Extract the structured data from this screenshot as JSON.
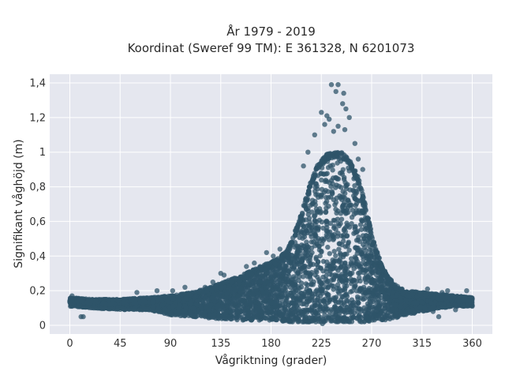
{
  "chart_data": {
    "type": "scatter",
    "title_line1": "År 1979 - 2019",
    "title_line2": "Koordinat (Sweref 99 TM): E 361328, N 6201073",
    "xlabel": "Vågriktning (grader)",
    "ylabel": "Signifikant våghöjd (m)",
    "xlim": [
      -18,
      378
    ],
    "ylim": [
      -0.05,
      1.45
    ],
    "xticks": [
      0,
      45,
      90,
      135,
      180,
      225,
      270,
      315,
      360
    ],
    "xtick_labels": [
      "0",
      "45",
      "90",
      "135",
      "180",
      "225",
      "270",
      "315",
      "360"
    ],
    "yticks": [
      0,
      0.2,
      0.4,
      0.6,
      0.8,
      1,
      1.2,
      1.4
    ],
    "ytick_labels": [
      "0",
      "0,2",
      "0,4",
      "0,6",
      "0,8",
      "1",
      "1,2",
      "1,4"
    ],
    "grid": true,
    "colors": {
      "marker": "#2f5469",
      "plot_bg": "#e5e7ef",
      "grid": "#ffffff",
      "page_bg": "#ffffff"
    },
    "envelope": {
      "x": [
        0,
        20,
        45,
        70,
        90,
        110,
        130,
        150,
        170,
        185,
        195,
        205,
        215,
        222,
        230,
        237,
        243,
        250,
        258,
        265,
        272,
        280,
        290,
        300,
        315,
        330,
        345,
        360
      ],
      "upper": [
        0.16,
        0.15,
        0.15,
        0.16,
        0.17,
        0.19,
        0.23,
        0.28,
        0.34,
        0.38,
        0.44,
        0.6,
        0.82,
        0.93,
        0.99,
        1.0,
        1.0,
        0.96,
        0.86,
        0.68,
        0.48,
        0.33,
        0.24,
        0.2,
        0.19,
        0.18,
        0.17,
        0.16
      ],
      "lower": [
        0.11,
        0.1,
        0.09,
        0.09,
        0.06,
        0.05,
        0.04,
        0.03,
        0.03,
        0.03,
        0.02,
        0.02,
        0.02,
        0.02,
        0.02,
        0.02,
        0.02,
        0.02,
        0.02,
        0.02,
        0.03,
        0.03,
        0.04,
        0.06,
        0.08,
        0.1,
        0.11,
        0.11
      ]
    },
    "outlier_points": [
      [
        225,
        1.23
      ],
      [
        234,
        1.39
      ],
      [
        240,
        1.39
      ],
      [
        238,
        1.35
      ],
      [
        245,
        1.34
      ],
      [
        244,
        1.28
      ],
      [
        247,
        1.25
      ],
      [
        250,
        1.2
      ],
      [
        232,
        1.19
      ],
      [
        228,
        1.16
      ],
      [
        219,
        1.1
      ],
      [
        255,
        1.05
      ],
      [
        213,
        1.0
      ],
      [
        258,
        0.96
      ],
      [
        209,
        0.92
      ],
      [
        262,
        0.9
      ],
      [
        240,
        1.15
      ],
      [
        236,
        1.12
      ],
      [
        246,
        1.13
      ],
      [
        230,
        1.21
      ],
      [
        135,
        0.3
      ],
      [
        138,
        0.29
      ],
      [
        142,
        0.26
      ],
      [
        158,
        0.34
      ],
      [
        165,
        0.36
      ],
      [
        171,
        0.33
      ],
      [
        176,
        0.42
      ],
      [
        182,
        0.4
      ],
      [
        188,
        0.44
      ],
      [
        60,
        0.19
      ],
      [
        78,
        0.2
      ],
      [
        92,
        0.2
      ],
      [
        103,
        0.22
      ],
      [
        121,
        0.22
      ],
      [
        128,
        0.25
      ],
      [
        12,
        0.05
      ],
      [
        10,
        0.05
      ],
      [
        308,
        0.07
      ],
      [
        325,
        0.08
      ],
      [
        330,
        0.05
      ],
      [
        345,
        0.09
      ],
      [
        333,
        0.19
      ],
      [
        338,
        0.2
      ],
      [
        355,
        0.2
      ],
      [
        320,
        0.21
      ],
      [
        2,
        0.17
      ],
      [
        358,
        0.14
      ],
      [
        214,
        0.02
      ],
      [
        226,
        0.01
      ],
      [
        261,
        0.02
      ]
    ]
  }
}
